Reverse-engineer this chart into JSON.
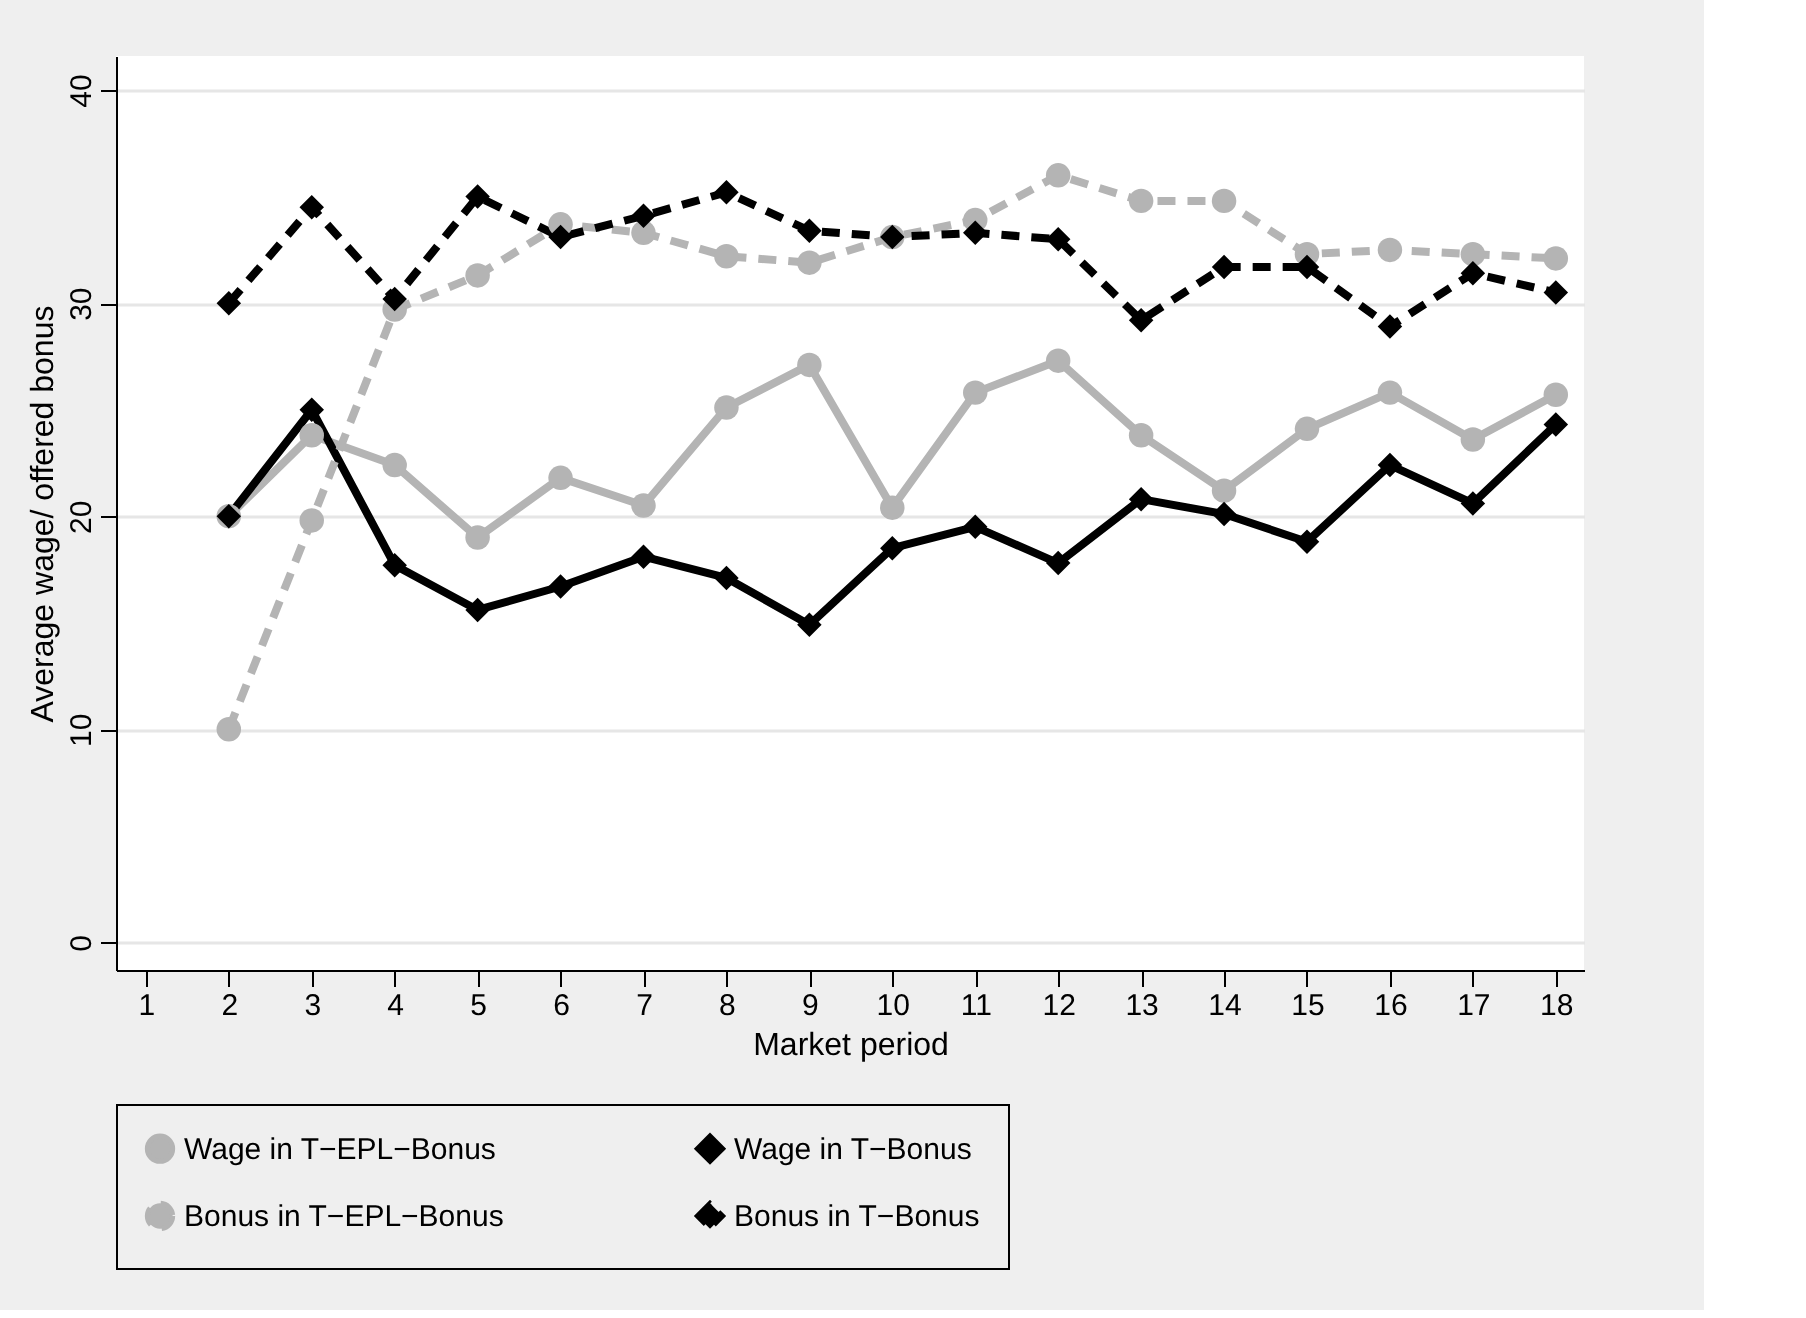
{
  "chart_data": {
    "type": "line",
    "xlabel": "Market period",
    "ylabel": "Average wage/ offered bonus",
    "x": [
      2,
      3,
      4,
      5,
      6,
      7,
      8,
      9,
      10,
      11,
      12,
      13,
      14,
      15,
      16,
      17,
      18
    ],
    "xlim": [
      0.64,
      18.34
    ],
    "xticks": [
      1,
      2,
      3,
      4,
      5,
      6,
      7,
      8,
      9,
      10,
      11,
      12,
      13,
      14,
      15,
      16,
      17,
      18
    ],
    "ylim": [
      -1.3,
      41.6
    ],
    "yticks": [
      0,
      10,
      20,
      30,
      40
    ],
    "grid": "y",
    "legend": "bottom",
    "series": [
      {
        "name": "Wage in T−EPL−Bonus",
        "color": "#b4b4b4",
        "marker": "circle",
        "line_style": "solid",
        "values": [
          20,
          23.8,
          22.4,
          19.0,
          21.8,
          20.5,
          25.1,
          27.1,
          20.4,
          25.8,
          27.3,
          23.8,
          21.2,
          24.1,
          25.8,
          23.6,
          25.7
        ]
      },
      {
        "name": "Wage in T−Bonus",
        "color": "#000000",
        "marker": "diamond",
        "line_style": "solid",
        "values": [
          20,
          25.0,
          17.7,
          15.6,
          16.7,
          18.1,
          17.1,
          14.9,
          18.5,
          19.5,
          17.8,
          20.8,
          20.1,
          18.8,
          22.4,
          20.6,
          24.3
        ]
      },
      {
        "name": "Bonus in T−EPL−Bonus",
        "color": "#b4b4b4",
        "marker": "circle",
        "line_style": "dashed",
        "values": [
          10,
          19.8,
          29.7,
          31.3,
          33.7,
          33.3,
          32.2,
          31.9,
          33.1,
          33.9,
          36.0,
          34.8,
          34.8,
          32.3,
          32.5,
          32.3,
          32.1
        ]
      },
      {
        "name": "Bonus in T−Bonus",
        "color": "#000000",
        "marker": "diamond",
        "line_style": "dashed",
        "values": [
          30,
          34.5,
          30.2,
          35.0,
          33.1,
          34.1,
          35.2,
          33.4,
          33.1,
          33.3,
          33.0,
          29.2,
          31.7,
          31.7,
          28.9,
          31.4,
          30.5
        ]
      }
    ]
  }
}
